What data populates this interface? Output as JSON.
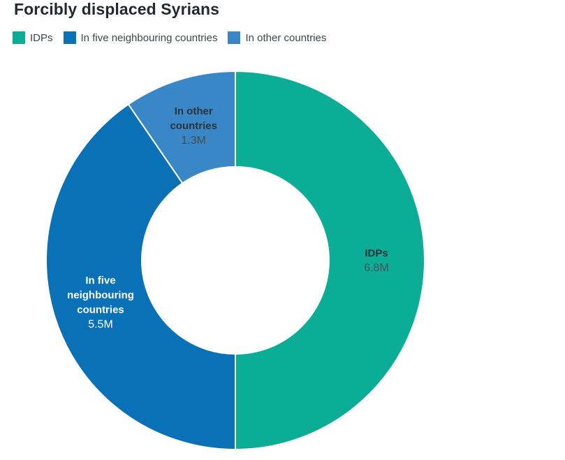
{
  "chart_data": {
    "type": "pie",
    "variant": "donut",
    "title": "Forcibly displaced Syrians",
    "legend_position": "top",
    "start_angle_deg": 0,
    "direction": "clockwise",
    "separator_color": "#ffffff",
    "slices": [
      {
        "name": "IDPs",
        "value": 6.8,
        "value_label": "6.8M",
        "label_lines": [
          "IDPs"
        ],
        "color": "#0cad96",
        "label_color": "#2e3338",
        "value_color": "#4a5157"
      },
      {
        "name": "In five neighbouring countries",
        "value": 5.5,
        "value_label": "5.5M",
        "label_lines": [
          "In five",
          "neighbouring",
          "countries"
        ],
        "color": "#0b71b7",
        "label_color": "#ffffff",
        "value_color": "#ffffff"
      },
      {
        "name": "In other countries",
        "value": 1.3,
        "value_label": "1.3M",
        "label_lines": [
          "In other",
          "countries"
        ],
        "color": "#3987c7",
        "label_color": "#2e3338",
        "value_color": "#454c52"
      }
    ]
  }
}
